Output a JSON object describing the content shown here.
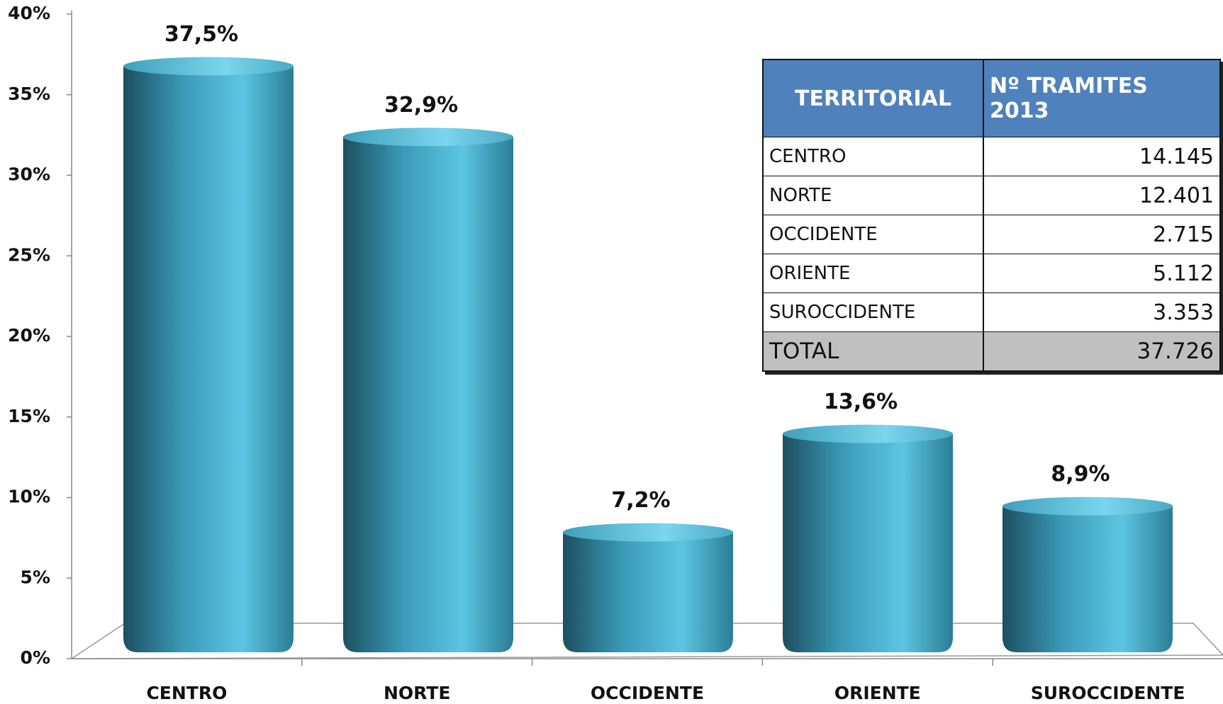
{
  "chart_data": {
    "type": "bar",
    "categories": [
      "CENTRO",
      "NORTE",
      "OCCIDENTE",
      "ORIENTE",
      "SUROCCIDENTE"
    ],
    "values": [
      37.5,
      32.9,
      7.2,
      13.6,
      8.9
    ],
    "value_labels": [
      "37,5%",
      "32,9%",
      "7,2%",
      "13,6%",
      "8,9%"
    ],
    "color": "#4fb8d6",
    "ylim": [
      0,
      40
    ],
    "yticks": [
      {
        "value": 0,
        "label": "0%"
      },
      {
        "value": 5,
        "label": "5%"
      },
      {
        "value": 10,
        "label": "10%"
      },
      {
        "value": 15,
        "label": "15%"
      },
      {
        "value": 20,
        "label": "20%"
      },
      {
        "value": 25,
        "label": "25%"
      },
      {
        "value": 30,
        "label": "30%"
      },
      {
        "value": 35,
        "label": "35%"
      },
      {
        "value": 40,
        "label": "40%"
      }
    ],
    "grid": false
  },
  "table": {
    "header": [
      "TERRITORIAL",
      "Nº TRAMITES 2013"
    ],
    "rows": [
      [
        "CENTRO",
        "14.145"
      ],
      [
        "NORTE",
        "12.401"
      ],
      [
        "OCCIDENTE",
        "2.715"
      ],
      [
        "ORIENTE",
        "5.112"
      ],
      [
        "SUROCCIDENTE",
        "3.353"
      ],
      [
        "TOTAL",
        "37.726"
      ]
    ]
  }
}
